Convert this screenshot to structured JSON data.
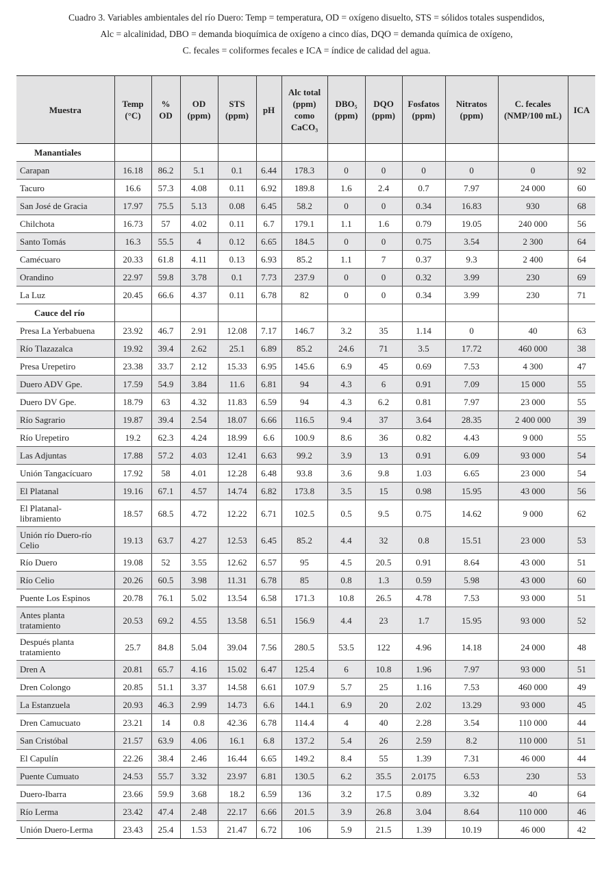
{
  "caption": [
    "Cuadro 3. Variables ambientales del río Duero: Temp = temperatura, OD = oxígeno disuelto, STS = sólidos totales suspendidos,",
    "Alc = alcalinidad, DBO = demanda bioquímica de oxígeno a cinco días, DQO = demanda química de oxígeno,",
    "C. fecales = coliformes fecales e ICA = índice de calidad del agua."
  ],
  "columns": [
    [
      "Muestra"
    ],
    [
      "Temp",
      "(°C)"
    ],
    [
      "%",
      "OD"
    ],
    [
      "OD",
      "(ppm)"
    ],
    [
      "STS",
      "(ppm)"
    ],
    [
      "pH"
    ],
    [
      "Alc total",
      "(ppm)",
      "como",
      "CaCO₃"
    ],
    [
      "DBO₅",
      "(ppm)"
    ],
    [
      "DQO",
      "(ppm)"
    ],
    [
      "Fosfatos",
      "(ppm)"
    ],
    [
      "Nitratos",
      "(ppm)"
    ],
    [
      "C. fecales",
      "(NMP/100 mL)"
    ],
    [
      "ICA"
    ]
  ],
  "sections": [
    {
      "title": "Manantiales",
      "shade_first": true,
      "rows": [
        [
          "Carapan",
          "16.18",
          "86.2",
          "5.1",
          "0.1",
          "6.44",
          "178.3",
          "0",
          "0",
          "0",
          "0",
          "0",
          "92"
        ],
        [
          "Tacuro",
          "16.6",
          "57.3",
          "4.08",
          "0.11",
          "6.92",
          "189.8",
          "1.6",
          "2.4",
          "0.7",
          "7.97",
          "24 000",
          "60"
        ],
        [
          "San José de Gracia",
          "17.97",
          "75.5",
          "5.13",
          "0.08",
          "6.45",
          "58.2",
          "0",
          "0",
          "0.34",
          "16.83",
          "930",
          "68"
        ],
        [
          "Chilchota",
          "16.73",
          "57",
          "4.02",
          "0.11",
          "6.7",
          "179.1",
          "1.1",
          "1.6",
          "0.79",
          "19.05",
          "240 000",
          "56"
        ],
        [
          "Santo Tomás",
          "16.3",
          "55.5",
          "4",
          "0.12",
          "6.65",
          "184.5",
          "0",
          "0",
          "0.75",
          "3.54",
          "2 300",
          "64"
        ],
        [
          "Camécuaro",
          "20.33",
          "61.8",
          "4.11",
          "0.13",
          "6.93",
          "85.2",
          "1.1",
          "7",
          "0.37",
          "9.3",
          "2 400",
          "64"
        ],
        [
          "Orandino",
          "22.97",
          "59.8",
          "3.78",
          "0.1",
          "7.73",
          "237.9",
          "0",
          "0",
          "0.32",
          "3.99",
          "230",
          "69"
        ],
        [
          "La Luz",
          "20.45",
          "66.6",
          "4.37",
          "0.11",
          "6.78",
          "82",
          "0",
          "0",
          "0.34",
          "3.99",
          "230",
          "71"
        ]
      ]
    },
    {
      "title": "Cauce del río",
      "shade_first": false,
      "rows": [
        [
          "Presa La Yerbabuena",
          "23.92",
          "46.7",
          "2.91",
          "12.08",
          "7.17",
          "146.7",
          "3.2",
          "35",
          "1.14",
          "0",
          "40",
          "63"
        ],
        [
          "Río Tlazazalca",
          "19.92",
          "39.4",
          "2.62",
          "25.1",
          "6.89",
          "85.2",
          "24.6",
          "71",
          "3.5",
          "17.72",
          "460 000",
          "38"
        ],
        [
          "Presa Urepetiro",
          "23.38",
          "33.7",
          "2.12",
          "15.33",
          "6.95",
          "145.6",
          "6.9",
          "45",
          "0.69",
          "7.53",
          "4 300",
          "47"
        ],
        [
          "Duero ADV Gpe.",
          "17.59",
          "54.9",
          "3.84",
          "11.6",
          "6.81",
          "94",
          "4.3",
          "6",
          "0.91",
          "7.09",
          "15 000",
          "55"
        ],
        [
          "Duero DV Gpe.",
          "18.79",
          "63",
          "4.32",
          "11.83",
          "6.59",
          "94",
          "4.3",
          "6.2",
          "0.81",
          "7.97",
          "23 000",
          "55"
        ],
        [
          "Río Sagrario",
          "19.87",
          "39.4",
          "2.54",
          "18.07",
          "6.66",
          "116.5",
          "9.4",
          "37",
          "3.64",
          "28.35",
          "2 400 000",
          "39"
        ],
        [
          "Río Urepetiro",
          "19.2",
          "62.3",
          "4.24",
          "18.99",
          "6.6",
          "100.9",
          "8.6",
          "36",
          "0.82",
          "4.43",
          "9 000",
          "55"
        ],
        [
          "Las Adjuntas",
          "17.88",
          "57.2",
          "4.03",
          "12.41",
          "6.63",
          "99.2",
          "3.9",
          "13",
          "0.91",
          "6.09",
          "93 000",
          "54"
        ],
        [
          "Unión Tangacícuaro",
          "17.92",
          "58",
          "4.01",
          "12.28",
          "6.48",
          "93.8",
          "3.6",
          "9.8",
          "1.03",
          "6.65",
          "23 000",
          "54"
        ],
        [
          "El Platanal",
          "19.16",
          "67.1",
          "4.57",
          "14.74",
          "6.82",
          "173.8",
          "3.5",
          "15",
          "0.98",
          "15.95",
          "43 000",
          "56"
        ],
        [
          "El Platanal-\nlibramiento",
          "18.57",
          "68.5",
          "4.72",
          "12.22",
          "6.71",
          "102.5",
          "0.5",
          "9.5",
          "0.75",
          "14.62",
          "9 000",
          "62"
        ],
        [
          "Unión río Duero-río\nCelio",
          "19.13",
          "63.7",
          "4.27",
          "12.53",
          "6.45",
          "85.2",
          "4.4",
          "32",
          "0.8",
          "15.51",
          "23 000",
          "53"
        ],
        [
          "Río Duero",
          "19.08",
          "52",
          "3.55",
          "12.62",
          "6.57",
          "95",
          "4.5",
          "20.5",
          "0.91",
          "8.64",
          "43 000",
          "51"
        ],
        [
          "Río Celio",
          "20.26",
          "60.5",
          "3.98",
          "11.31",
          "6.78",
          "85",
          "0.8",
          "1.3",
          "0.59",
          "5.98",
          "43 000",
          "60"
        ],
        [
          "Puente Los Espinos",
          "20.78",
          "76.1",
          "5.02",
          "13.54",
          "6.58",
          "171.3",
          "10.8",
          "26.5",
          "4.78",
          "7.53",
          "93 000",
          "51"
        ],
        [
          "Antes planta\ntratamiento",
          "20.53",
          "69.2",
          "4.55",
          "13.58",
          "6.51",
          "156.9",
          "4.4",
          "23",
          "1.7",
          "15.95",
          "93 000",
          "52"
        ],
        [
          "Después planta\ntratamiento",
          "25.7",
          "84.8",
          "5.04",
          "39.04",
          "7.56",
          "280.5",
          "53.5",
          "122",
          "4.96",
          "14.18",
          "24 000",
          "48"
        ],
        [
          "Dren A",
          "20.81",
          "65.7",
          "4.16",
          "15.02",
          "6.47",
          "125.4",
          "6",
          "10.8",
          "1.96",
          "7.97",
          "93 000",
          "51"
        ],
        [
          "Dren Colongo",
          "20.85",
          "51.1",
          "3.37",
          "14.58",
          "6.61",
          "107.9",
          "5.7",
          "25",
          "1.16",
          "7.53",
          "460 000",
          "49"
        ],
        [
          "La Estanzuela",
          "20.93",
          "46.3",
          "2.99",
          "14.73",
          "6.6",
          "144.1",
          "6.9",
          "20",
          "2.02",
          "13.29",
          "93 000",
          "45"
        ],
        [
          "Dren Camucuato",
          "23.21",
          "14",
          "0.8",
          "42.36",
          "6.78",
          "114.4",
          "4",
          "40",
          "2.28",
          "3.54",
          "110 000",
          "44"
        ],
        [
          "San Cristóbal",
          "21.57",
          "63.9",
          "4.06",
          "16.1",
          "6.8",
          "137.2",
          "5.4",
          "26",
          "2.59",
          "8.2",
          "110 000",
          "51"
        ],
        [
          "El Capulín",
          "22.26",
          "38.4",
          "2.46",
          "16.44",
          "6.65",
          "149.2",
          "8.4",
          "55",
          "1.39",
          "7.31",
          "46 000",
          "44"
        ],
        [
          "Puente Cumuato",
          "24.53",
          "55.7",
          "3.32",
          "23.97",
          "6.81",
          "130.5",
          "6.2",
          "35.5",
          "2.0175",
          "6.53",
          "230",
          "53"
        ],
        [
          "Duero-Ibarra",
          "23.66",
          "59.9",
          "3.68",
          "18.2",
          "6.59",
          "136",
          "3.2",
          "17.5",
          "0.89",
          "3.32",
          "40",
          "64"
        ],
        [
          "Río Lerma",
          "23.42",
          "47.4",
          "2.48",
          "22.17",
          "6.66",
          "201.5",
          "3.9",
          "26.8",
          "3.04",
          "8.64",
          "110 000",
          "46"
        ],
        [
          "Unión Duero-Lerma",
          "23.43",
          "25.4",
          "1.53",
          "21.47",
          "6.72",
          "106",
          "5.9",
          "21.5",
          "1.39",
          "10.19",
          "46 000",
          "42"
        ]
      ]
    }
  ]
}
